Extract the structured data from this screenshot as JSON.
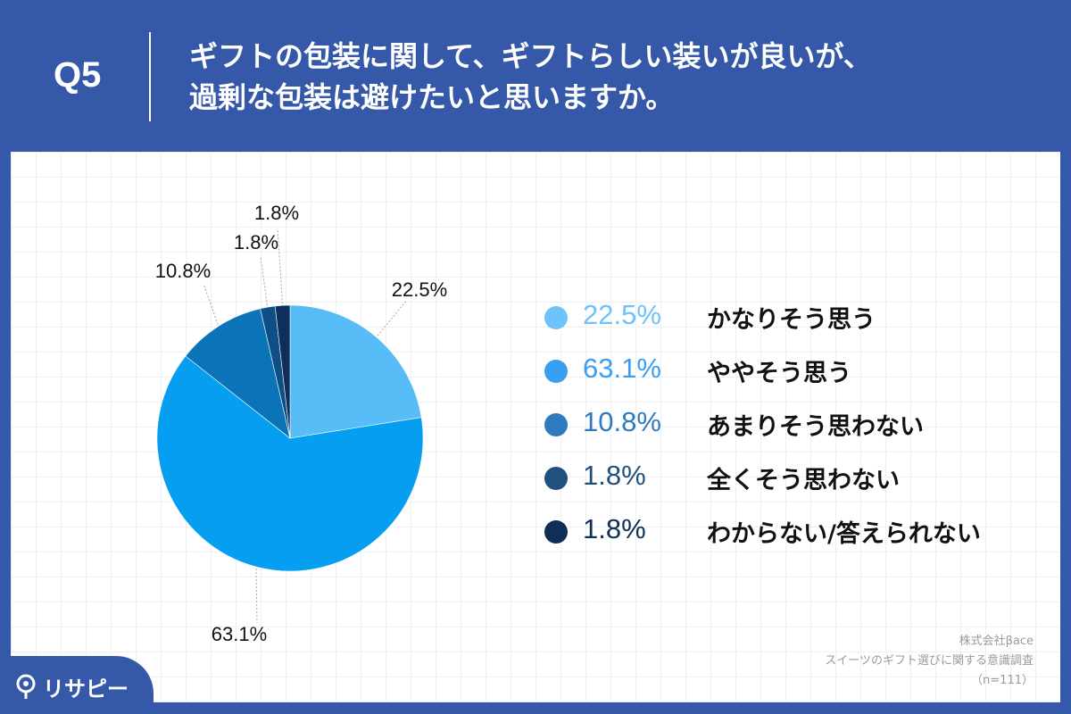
{
  "header": {
    "question_number": "Q5",
    "title_line1": "ギフトの包装に関して、ギフトらしい装いが良いが、",
    "title_line2": "過剰な包装は避けたいと思いますか。"
  },
  "chart_data": {
    "type": "pie",
    "start_angle_deg": 0,
    "direction": "clockwise",
    "slices": [
      {
        "label": "かなりそう思う",
        "value": 22.5,
        "value_label": "22.5%",
        "color": "#58bdf7"
      },
      {
        "label": "ややそう思う",
        "value": 63.1,
        "value_label": "63.1%",
        "color": "#069ef0"
      },
      {
        "label": "あまりそう思わない",
        "value": 10.8,
        "value_label": "10.8%",
        "color": "#0b74b8"
      },
      {
        "label": "全くそう思わない",
        "value": 1.8,
        "value_label": "1.8%",
        "color": "#0e4f85"
      },
      {
        "label": "わからない/答えられない",
        "value": 1.8,
        "value_label": "1.8%",
        "color": "#0c2f5d"
      }
    ]
  },
  "legend": {
    "items": [
      {
        "pct": "22.5%",
        "label": "かなりそう思う",
        "color": "#6dc3fa",
        "text_color": "#6dc3fa"
      },
      {
        "pct": "63.1%",
        "label": "ややそう思う",
        "color": "#3a9ff0",
        "text_color": "#3a9ff0"
      },
      {
        "pct": "10.8%",
        "label": "あまりそう思わない",
        "color": "#2f7abf",
        "text_color": "#2f7abf"
      },
      {
        "pct": "1.8%",
        "label": "全くそう思わない",
        "color": "#20507e",
        "text_color": "#20507e"
      },
      {
        "pct": "1.8%",
        "label": "わからない/答えられない",
        "color": "#102f57",
        "text_color": "#102f57"
      }
    ]
  },
  "source": {
    "line1": "株式会社βace",
    "line2": "スイーツのギフト選びに関する意識調査",
    "line3": "（n=111）"
  },
  "logo": {
    "text": "リサピー",
    "icon": "pin-icon"
  }
}
